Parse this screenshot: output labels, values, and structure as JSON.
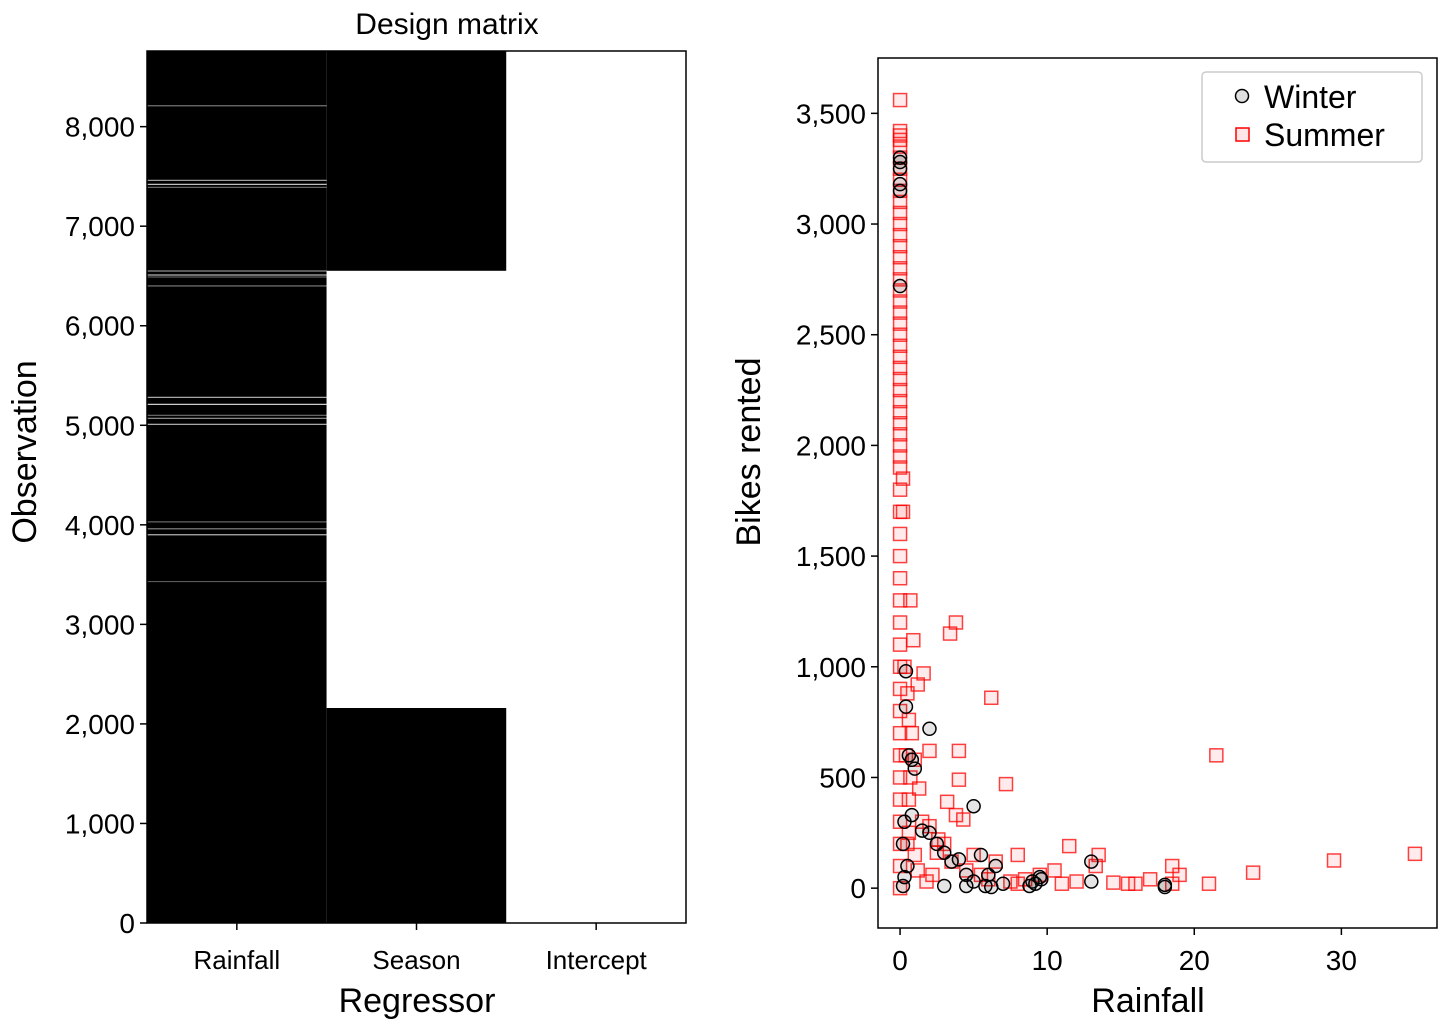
{
  "chart_data": [
    {
      "type": "heatmap",
      "title": "Design matrix",
      "xlabel": "Regressor",
      "ylabel": "Observation",
      "categories": [
        "Rainfall",
        "Season",
        "Intercept"
      ],
      "yticks": [
        "0",
        "1,000",
        "2,000",
        "3,000",
        "4,000",
        "5,000",
        "6,000",
        "7,000",
        "8,000"
      ],
      "ylim": [
        0,
        8760
      ],
      "season_summer_range": [
        2160,
        6552
      ],
      "rainfall_bright_rows": [
        3430,
        3900,
        3960,
        4030,
        5010,
        5070,
        5100,
        5210,
        5280,
        6400,
        6490,
        6510,
        6550,
        7390,
        7420,
        7460,
        8210
      ],
      "colors": {
        "low": "#000000",
        "high": "#ffffff"
      }
    },
    {
      "type": "scatter",
      "xlabel": "Rainfall",
      "ylabel": "Bikes rented",
      "xlim": [
        -1.5,
        36.5
      ],
      "ylim": [
        -180,
        3750
      ],
      "xticks": [
        "0",
        "10",
        "20",
        "30"
      ],
      "yticks": [
        "0",
        "500",
        "1,000",
        "1,500",
        "2,000",
        "2,500",
        "3,000",
        "3,500"
      ],
      "legend_position": "top-right",
      "series": [
        {
          "name": "Winter",
          "marker": "circle",
          "color": "#000000",
          "points": [
            [
              0,
              3300
            ],
            [
              0,
              3280
            ],
            [
              0,
              3250
            ],
            [
              0,
              3180
            ],
            [
              0,
              3150
            ],
            [
              0,
              2720
            ],
            [
              0.4,
              980
            ],
            [
              0.4,
              820
            ],
            [
              0.6,
              600
            ],
            [
              0.8,
              580
            ],
            [
              1.0,
              540
            ],
            [
              2.0,
              720
            ],
            [
              0.8,
              330
            ],
            [
              1.5,
              260
            ],
            [
              2.0,
              250
            ],
            [
              2.5,
              200
            ],
            [
              3.0,
              160
            ],
            [
              3.5,
              120
            ],
            [
              4.0,
              130
            ],
            [
              4.5,
              60
            ],
            [
              5.0,
              370
            ],
            [
              5.5,
              150
            ],
            [
              6.0,
              60
            ],
            [
              6.5,
              100
            ],
            [
              5.0,
              30
            ],
            [
              5.8,
              10
            ],
            [
              6.2,
              5
            ],
            [
              7.0,
              20
            ],
            [
              4.5,
              10
            ],
            [
              3.0,
              10
            ],
            [
              9.0,
              30
            ],
            [
              9.5,
              50
            ],
            [
              8.8,
              10
            ],
            [
              9.2,
              20
            ],
            [
              9.6,
              40
            ],
            [
              13.0,
              120
            ],
            [
              13.0,
              30
            ],
            [
              18.0,
              15
            ],
            [
              18.0,
              5
            ],
            [
              0.2,
              10
            ],
            [
              0.3,
              50
            ],
            [
              0.5,
              100
            ],
            [
              0.2,
              200
            ],
            [
              0.3,
              300
            ]
          ]
        },
        {
          "name": "Summer",
          "marker": "square",
          "color": "#ff0000",
          "points": [
            [
              0,
              3560
            ],
            [
              0,
              3420
            ],
            [
              0,
              3400
            ],
            [
              0,
              3380
            ],
            [
              0,
              3350
            ],
            [
              0,
              3300
            ],
            [
              0,
              3250
            ],
            [
              0,
              3200
            ],
            [
              0,
              3150
            ],
            [
              0,
              3100
            ],
            [
              0,
              3050
            ],
            [
              0,
              3000
            ],
            [
              0,
              2950
            ],
            [
              0,
              2900
            ],
            [
              0,
              2850
            ],
            [
              0,
              2800
            ],
            [
              0,
              2750
            ],
            [
              0,
              2700
            ],
            [
              0,
              2650
            ],
            [
              0,
              2600
            ],
            [
              0,
              2550
            ],
            [
              0,
              2500
            ],
            [
              0,
              2450
            ],
            [
              0,
              2400
            ],
            [
              0,
              2350
            ],
            [
              0,
              2300
            ],
            [
              0,
              2250
            ],
            [
              0,
              2200
            ],
            [
              0,
              2150
            ],
            [
              0,
              2100
            ],
            [
              0,
              2050
            ],
            [
              0,
              2000
            ],
            [
              0,
              1950
            ],
            [
              0,
              1900
            ],
            [
              0,
              1800
            ],
            [
              0,
              1700
            ],
            [
              0,
              1600
            ],
            [
              0,
              1500
            ],
            [
              0,
              1400
            ],
            [
              0,
              1300
            ],
            [
              0,
              1200
            ],
            [
              0,
              1100
            ],
            [
              0,
              1000
            ],
            [
              0,
              900
            ],
            [
              0,
              800
            ],
            [
              0,
              700
            ],
            [
              0,
              600
            ],
            [
              0,
              500
            ],
            [
              0,
              400
            ],
            [
              0,
              300
            ],
            [
              0,
              200
            ],
            [
              0,
              100
            ],
            [
              0,
              0
            ],
            [
              0.2,
              1850
            ],
            [
              0.2,
              1700
            ],
            [
              0.7,
              1300
            ],
            [
              0.9,
              1120
            ],
            [
              1.2,
              920
            ],
            [
              1.6,
              970
            ],
            [
              3.4,
              1150
            ],
            [
              3.8,
              1200
            ],
            [
              6.2,
              860
            ],
            [
              0.5,
              880
            ],
            [
              0.6,
              760
            ],
            [
              0.8,
              700
            ],
            [
              2.0,
              620
            ],
            [
              4.0,
              620
            ],
            [
              1.0,
              580
            ],
            [
              4.0,
              490
            ],
            [
              7.2,
              470
            ],
            [
              1.3,
              450
            ],
            [
              3.2,
              390
            ],
            [
              3.8,
              330
            ],
            [
              4.3,
              310
            ],
            [
              1.5,
              300
            ],
            [
              2.0,
              280
            ],
            [
              0.6,
              250
            ],
            [
              2.6,
              220
            ],
            [
              3.0,
              200
            ],
            [
              5.0,
              150
            ],
            [
              6.5,
              120
            ],
            [
              8.0,
              150
            ],
            [
              11.5,
              190
            ],
            [
              13.5,
              150
            ],
            [
              13.3,
              100
            ],
            [
              10.5,
              80
            ],
            [
              9.5,
              60
            ],
            [
              8.5,
              40
            ],
            [
              11.0,
              20
            ],
            [
              12.0,
              30
            ],
            [
              14.5,
              25
            ],
            [
              15.5,
              20
            ],
            [
              16.0,
              20
            ],
            [
              17.0,
              40
            ],
            [
              18.5,
              20
            ],
            [
              18.5,
              100
            ],
            [
              19.0,
              60
            ],
            [
              21.0,
              20
            ],
            [
              21.5,
              600
            ],
            [
              24.0,
              70
            ],
            [
              29.5,
              125
            ],
            [
              35.0,
              155
            ],
            [
              7.5,
              30
            ],
            [
              8.0,
              20
            ],
            [
              6.0,
              40
            ],
            [
              5.5,
              60
            ],
            [
              4.5,
              80
            ],
            [
              3.5,
              120
            ],
            [
              2.5,
              160
            ],
            [
              2.2,
              60
            ],
            [
              1.8,
              30
            ],
            [
              1.2,
              80
            ],
            [
              1.0,
              150
            ],
            [
              0.6,
              400
            ],
            [
              0.4,
              600
            ],
            [
              0.5,
              200
            ],
            [
              0.3,
              1000
            ],
            [
              0.7,
              500
            ]
          ]
        }
      ]
    }
  ]
}
